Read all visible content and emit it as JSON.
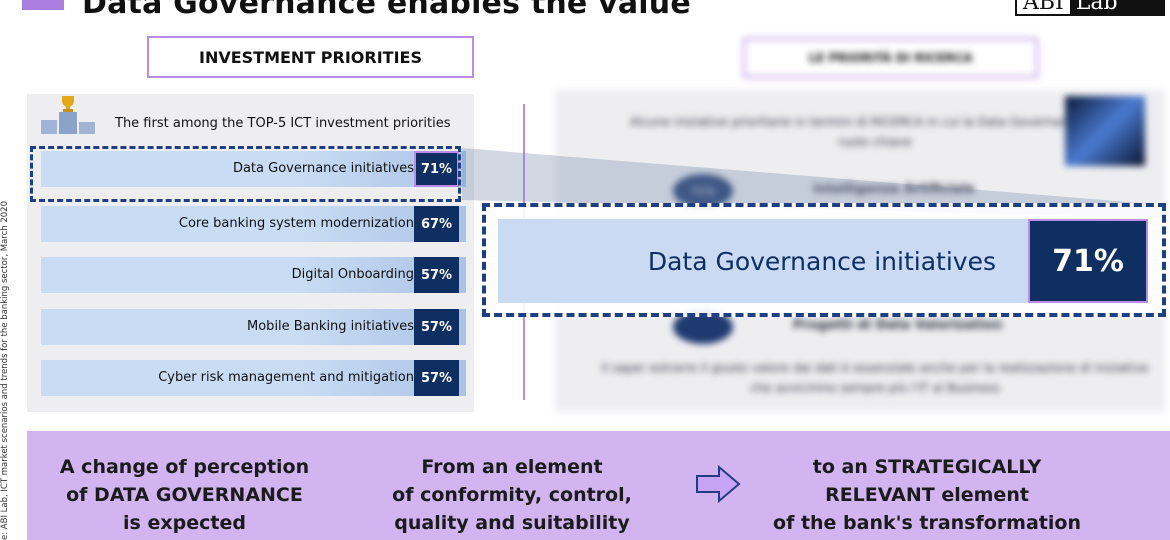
{
  "header": {
    "title": "Data Governance enables the value",
    "logo_left": "ABI",
    "logo_right": "Lab",
    "accent_color": "#a97ee0"
  },
  "side_note": "e: ABI Lab, ICT market scenarios and trends for the banking sector, March 2020",
  "investment": {
    "section_title": "INVESTMENT PRIORITIES",
    "heading": "The first among the TOP-5 ICT investment priorities",
    "trophy_icon": "trophy-podium-icon",
    "rows": [
      {
        "label": "Data Governance initiatives",
        "pct": "71%"
      },
      {
        "label": "Core banking system modernization",
        "pct": "67%"
      },
      {
        "label": "Digital Onboarding",
        "pct": "57%"
      },
      {
        "label": "Mobile Banking initiatives",
        "pct": "57%"
      },
      {
        "label": "Cyber risk management and mitigation",
        "pct": "57%"
      }
    ]
  },
  "research": {
    "section_title": "LE PRIORITÀ DI RICERCA",
    "intro": "Alcune iniziative prioritarie in termini di RICERCA in cui la Data Governance ha un ruolo chiave",
    "item1_pct": "71%",
    "item1_label": "Intelligenza Artificiale",
    "item2_label": "Progetti di Data Valorization",
    "outro": "Il saper estrarre il giusto valore dai dati è essenziale anche per la realizzazione di iniziative che avvicinino sempre più l'IT al Business"
  },
  "zoom": {
    "label": "Data Governance initiatives",
    "pct": "71%"
  },
  "bottom": {
    "col1": [
      "A change of perception",
      "of DATA GOVERNANCE",
      "is expected"
    ],
    "col2": [
      "From an element",
      "of conformity, control,",
      "quality and suitability"
    ],
    "col3": [
      "to an STRATEGICALLY",
      "RELEVANT element",
      "of the bank's transformation"
    ],
    "arrow_icon": "right-arrow-icon",
    "band_color": "#d2b4f1"
  }
}
